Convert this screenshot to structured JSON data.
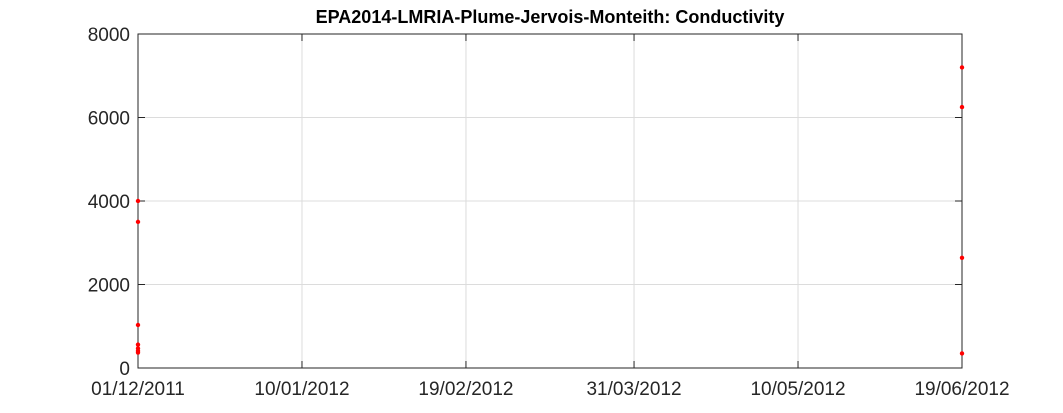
{
  "chart_data": {
    "type": "scatter",
    "title": "EPA2014-LMRIA-Plume-Jervois-Monteith: Conductivity",
    "xlabel": "",
    "ylabel": "",
    "x_ticks": [
      "01/12/2011",
      "10/01/2012",
      "19/02/2012",
      "31/03/2012",
      "10/05/2012",
      "19/06/2012"
    ],
    "x_range": [
      "01/12/2011",
      "19/06/2012"
    ],
    "ylim": [
      0,
      8000
    ],
    "y_ticks": [
      0,
      2000,
      4000,
      6000,
      8000
    ],
    "grid": true,
    "marker_color": "#ff0000",
    "series": [
      {
        "points": [
          {
            "x": "01/12/2011",
            "y": 4000
          },
          {
            "x": "01/12/2011",
            "y": 3500
          },
          {
            "x": "01/12/2011",
            "y": 1030
          },
          {
            "x": "01/12/2011",
            "y": 560
          },
          {
            "x": "01/12/2011",
            "y": 470
          },
          {
            "x": "01/12/2011",
            "y": 410
          },
          {
            "x": "01/12/2011",
            "y": 370
          },
          {
            "x": "19/06/2012",
            "y": 7200
          },
          {
            "x": "19/06/2012",
            "y": 6250
          },
          {
            "x": "19/06/2012",
            "y": 2640
          },
          {
            "x": "19/06/2012",
            "y": 350
          }
        ]
      }
    ]
  }
}
